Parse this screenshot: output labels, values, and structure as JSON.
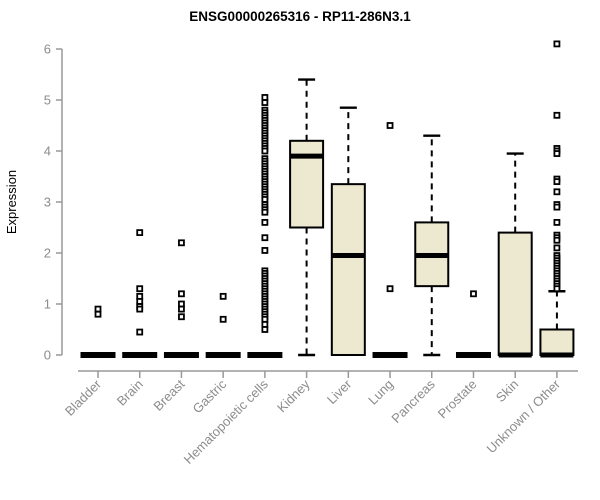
{
  "window": {
    "background": "#ffffff"
  },
  "colors": {
    "box_fill": "#EDE8D0",
    "box_stroke": "#000000",
    "median_color": "#000000",
    "whisker_color": "#000000",
    "outlier_color": "#000000",
    "axis_color": "#999999",
    "tick_text_color": "#8C8C8C",
    "title_color": "#000000"
  },
  "chart_data": {
    "type": "boxplot",
    "title": "ENSG00000265316 - RP11-286N3.1",
    "ylabel": "Expression",
    "xlabel": "",
    "ylim": [
      0,
      6
    ],
    "yticks": [
      0,
      1,
      2,
      3,
      4,
      5,
      6
    ],
    "grid": "off",
    "legend": "none",
    "categories": [
      "Bladder",
      "Brain",
      "Breast",
      "Gastric",
      "Hematopoietic cells",
      "Kidney",
      "Liver",
      "Lung",
      "Pancreas",
      "Prostate",
      "Skin",
      "Unknown / Other"
    ],
    "series": [
      {
        "name": "Bladder",
        "whisker_low": 0,
        "q1": 0,
        "median": 0,
        "q3": 0,
        "whisker_high": 0,
        "outliers": [
          0.9,
          0.8
        ]
      },
      {
        "name": "Brain",
        "whisker_low": 0,
        "q1": 0,
        "median": 0,
        "q3": 0,
        "whisker_high": 0,
        "outliers": [
          2.4,
          1.3,
          1.15,
          1.05,
          0.95,
          0.9,
          0.45
        ]
      },
      {
        "name": "Breast",
        "whisker_low": 0,
        "q1": 0,
        "median": 0,
        "q3": 0,
        "whisker_high": 0,
        "outliers": [
          2.2,
          1.2,
          1.0,
          0.9,
          0.75
        ]
      },
      {
        "name": "Gastric",
        "whisker_low": 0,
        "q1": 0,
        "median": 0,
        "q3": 0,
        "whisker_high": 0,
        "outliers": [
          1.15,
          0.7
        ]
      },
      {
        "name": "Hematopoietic cells",
        "whisker_low": 0,
        "q1": 0,
        "median": 0,
        "q3": 0,
        "whisker_high": 0,
        "outliers": [
          5.05,
          4.95,
          4.8,
          4.75,
          4.7,
          4.65,
          4.6,
          4.55,
          4.5,
          4.45,
          4.4,
          4.35,
          4.3,
          4.25,
          4.2,
          4.15,
          4.1,
          4.05,
          4.0,
          3.85,
          3.8,
          3.75,
          3.7,
          3.65,
          3.6,
          3.55,
          3.5,
          3.45,
          3.4,
          3.35,
          3.3,
          3.25,
          3.2,
          3.15,
          3.1,
          3.05,
          2.95,
          2.9,
          2.85,
          2.8,
          2.6,
          2.3,
          2.05,
          1.65,
          1.6,
          1.55,
          1.5,
          1.45,
          1.4,
          1.35,
          1.3,
          1.25,
          1.2,
          1.15,
          1.1,
          1.05,
          1.0,
          0.95,
          0.9,
          0.85,
          0.8,
          0.75,
          0.7,
          0.6,
          0.5
        ]
      },
      {
        "name": "Kidney",
        "whisker_low": 0,
        "q1": 2.5,
        "median": 3.9,
        "q3": 4.2,
        "whisker_high": 5.4,
        "outliers": []
      },
      {
        "name": "Liver",
        "whisker_low": 0,
        "q1": 0,
        "median": 1.95,
        "q3": 3.35,
        "whisker_high": 4.85,
        "outliers": []
      },
      {
        "name": "Lung",
        "whisker_low": 0,
        "q1": 0,
        "median": 0,
        "q3": 0,
        "whisker_high": 0,
        "outliers": [
          4.5,
          1.3
        ]
      },
      {
        "name": "Pancreas",
        "whisker_low": 0,
        "q1": 1.35,
        "median": 1.95,
        "q3": 2.6,
        "whisker_high": 4.3,
        "outliers": []
      },
      {
        "name": "Prostate",
        "whisker_low": 0,
        "q1": 0,
        "median": 0,
        "q3": 0,
        "whisker_high": 0,
        "outliers": [
          1.2
        ]
      },
      {
        "name": "Skin",
        "whisker_low": 0,
        "q1": 0,
        "median": 0,
        "q3": 2.4,
        "whisker_high": 3.95,
        "outliers": []
      },
      {
        "name": "Unknown / Other",
        "whisker_low": 0,
        "q1": 0,
        "median": 0,
        "q3": 0.5,
        "whisker_high": 1.25,
        "outliers": [
          6.1,
          4.7,
          4.05,
          4.0,
          3.95,
          3.45,
          3.4,
          3.2,
          2.95,
          2.9,
          2.6,
          2.35,
          2.3,
          2.25,
          2.1,
          1.95,
          1.9,
          1.85,
          1.8,
          1.75,
          1.7,
          1.65,
          1.6,
          1.55,
          1.5,
          1.45,
          1.4,
          1.35,
          1.3
        ]
      }
    ]
  }
}
